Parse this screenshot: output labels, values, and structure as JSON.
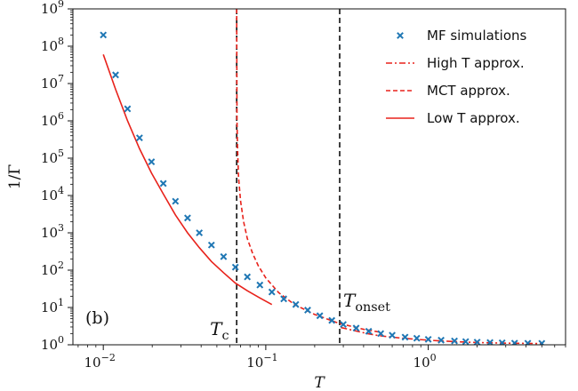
{
  "chart_data": {
    "type": "scatter",
    "xlabel": "T",
    "ylabel": "1/Γ",
    "xscale": "log",
    "yscale": "log",
    "xlim": [
      0.0065,
      7
    ],
    "ylim": [
      1,
      1000000000
    ],
    "x_ticks": [
      {
        "value": 0.01,
        "base": "10",
        "exp": "−2"
      },
      {
        "value": 0.1,
        "base": "10",
        "exp": "−1"
      },
      {
        "value": 1,
        "base": "10",
        "exp": "0"
      }
    ],
    "y_ticks": [
      {
        "value": 1,
        "base": "10",
        "exp": "0"
      },
      {
        "value": 10,
        "base": "10",
        "exp": "1"
      },
      {
        "value": 100,
        "base": "10",
        "exp": "2"
      },
      {
        "value": 1000,
        "base": "10",
        "exp": "3"
      },
      {
        "value": 10000,
        "base": "10",
        "exp": "4"
      },
      {
        "value": 100000,
        "base": "10",
        "exp": "5"
      },
      {
        "value": 1000000,
        "base": "10",
        "exp": "6"
      },
      {
        "value": 10000000,
        "base": "10",
        "exp": "7"
      },
      {
        "value": 100000000,
        "base": "10",
        "exp": "8"
      },
      {
        "value": 1000000000,
        "base": "10",
        "exp": "9"
      }
    ],
    "panel_label": "(b)",
    "legend_position": "top-right",
    "grid": false,
    "series": [
      {
        "name": "MF simulations",
        "kind": "scatter",
        "marker": "x",
        "color": "#1f77b4",
        "points": [
          [
            0.01,
            200000000
          ],
          [
            0.0119,
            17000000
          ],
          [
            0.0141,
            2100000
          ],
          [
            0.0167,
            350000
          ],
          [
            0.0198,
            80000
          ],
          [
            0.0234,
            21000
          ],
          [
            0.0278,
            7000
          ],
          [
            0.033,
            2500
          ],
          [
            0.039,
            1000
          ],
          [
            0.0463,
            470
          ],
          [
            0.055,
            230
          ],
          [
            0.065,
            120
          ],
          [
            0.077,
            66
          ],
          [
            0.092,
            40
          ],
          [
            0.109,
            26
          ],
          [
            0.129,
            17
          ],
          [
            0.153,
            12
          ],
          [
            0.181,
            8.5
          ],
          [
            0.215,
            6
          ],
          [
            0.255,
            4.5
          ],
          [
            0.3,
            3.5
          ],
          [
            0.36,
            2.8
          ],
          [
            0.43,
            2.3
          ],
          [
            0.51,
            2
          ],
          [
            0.6,
            1.8
          ],
          [
            0.72,
            1.6
          ],
          [
            0.85,
            1.5
          ],
          [
            1.0,
            1.4
          ],
          [
            1.2,
            1.33
          ],
          [
            1.45,
            1.27
          ],
          [
            1.7,
            1.22
          ],
          [
            2.0,
            1.18
          ],
          [
            2.4,
            1.15
          ],
          [
            2.85,
            1.13
          ],
          [
            3.4,
            1.11
          ],
          [
            4.1,
            1.1
          ],
          [
            5.0,
            1.09
          ]
        ]
      },
      {
        "name": "High T approx.",
        "kind": "line",
        "style": "dashdot",
        "color": "#e8221b",
        "points": [
          [
            0.29,
            2.9
          ],
          [
            0.35,
            2.4
          ],
          [
            0.42,
            2.0
          ],
          [
            0.5,
            1.75
          ],
          [
            0.6,
            1.6
          ],
          [
            0.72,
            1.48
          ],
          [
            0.85,
            1.4
          ],
          [
            1.0,
            1.33
          ],
          [
            1.2,
            1.27
          ],
          [
            1.45,
            1.22
          ],
          [
            1.7,
            1.18
          ],
          [
            2.0,
            1.15
          ],
          [
            2.4,
            1.13
          ],
          [
            2.85,
            1.11
          ],
          [
            3.4,
            1.1
          ],
          [
            4.1,
            1.09
          ],
          [
            5.0,
            1.08
          ]
        ]
      },
      {
        "name": "MCT approx.",
        "kind": "line",
        "style": "dashed",
        "color": "#e8221b",
        "points": [
          [
            0.0662,
            1000000000
          ],
          [
            0.0665,
            1000000
          ],
          [
            0.067,
            200000
          ],
          [
            0.068,
            30000
          ],
          [
            0.07,
            7000
          ],
          [
            0.073,
            2000
          ],
          [
            0.077,
            700
          ],
          [
            0.083,
            280
          ],
          [
            0.09,
            130
          ],
          [
            0.1,
            62
          ],
          [
            0.12,
            25
          ],
          [
            0.15,
            12
          ],
          [
            0.2,
            6.5
          ],
          [
            0.28,
            3.8
          ],
          [
            0.4,
            2.6
          ],
          [
            0.5,
            2.2
          ]
        ]
      },
      {
        "name": "Low T approx.",
        "kind": "line",
        "style": "solid",
        "color": "#e8221b",
        "points": [
          [
            0.01,
            60000000
          ],
          [
            0.0119,
            7000000
          ],
          [
            0.0141,
            1000000
          ],
          [
            0.0167,
            180000
          ],
          [
            0.0198,
            40000
          ],
          [
            0.0234,
            11000
          ],
          [
            0.0278,
            3000
          ],
          [
            0.033,
            1000
          ],
          [
            0.039,
            400
          ],
          [
            0.0463,
            170
          ],
          [
            0.055,
            85
          ],
          [
            0.065,
            45
          ],
          [
            0.077,
            28
          ],
          [
            0.092,
            18
          ],
          [
            0.109,
            12
          ]
        ]
      }
    ],
    "vlines": [
      {
        "x": 0.0662,
        "style": "dashed",
        "color": "#111111",
        "label_base": "T",
        "label_sub": "c"
      },
      {
        "x": 0.285,
        "style": "dashed",
        "color": "#111111",
        "label_base": "T",
        "label_sub": "onset"
      }
    ]
  }
}
